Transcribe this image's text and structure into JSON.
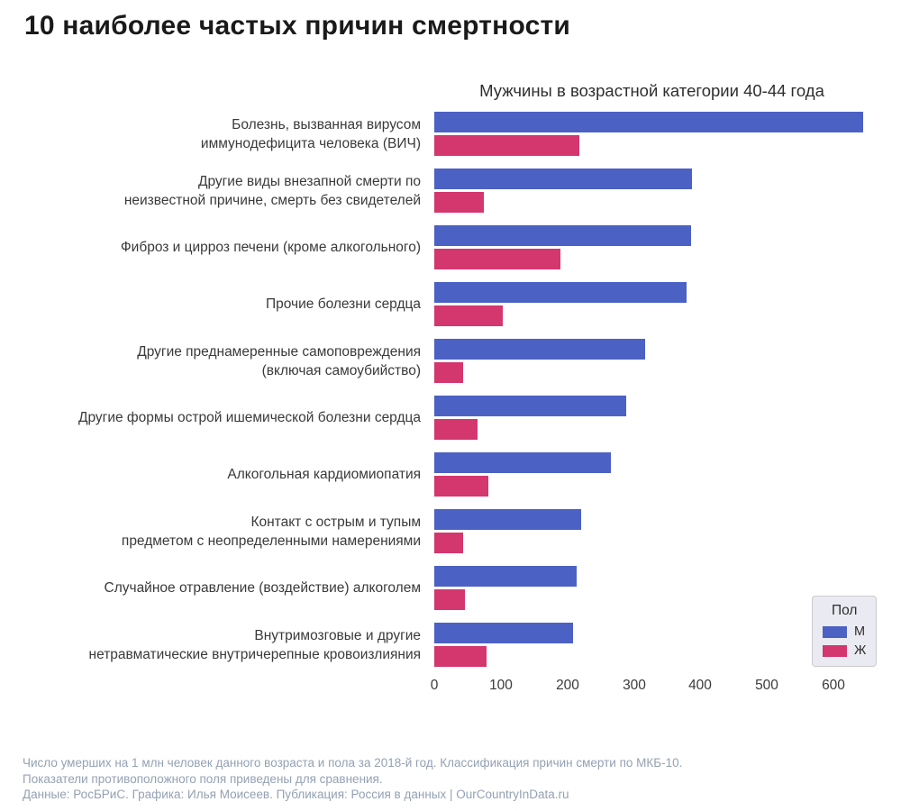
{
  "title": "10 наиболее частых причин смертности",
  "subtitle": "Мужчины в возрастной категории 40-44 года",
  "legend": {
    "title": "Пол",
    "items": [
      {
        "label": "М",
        "color": "#4b61c4"
      },
      {
        "label": "Ж",
        "color": "#d4366e"
      }
    ]
  },
  "footer": {
    "line1": "Число умерших на 1 млн человек данного возраста и пола за 2018-й год. Классификация причин смерти по МКБ-10.",
    "line2": "Показатели противоположного поля приведены для сравнения.",
    "line3": "Данные: РосБРиС. Графика: Илья Моисеев. Публикация: Россия в данных | OurCountryInData.ru"
  },
  "chart_data": {
    "type": "bar",
    "orientation": "horizontal",
    "title": "10 наиболее частых причин смертности",
    "subtitle": "Мужчины в возрастной категории 40-44 года",
    "xlabel": "",
    "ylabel": "",
    "xticks": [
      0,
      100,
      200,
      300,
      400,
      500,
      600
    ],
    "xlim": [
      0,
      660
    ],
    "grid": false,
    "legend_position": "lower right",
    "categories": [
      "Болезнь, вызванная вирусом\nиммунодефицита человека (ВИЧ)",
      "Другие виды внезапной смерти по\nнеизвестной причине, смерть без свидетелей",
      "Фиброз и цирроз печени (кроме алкогольного)",
      "Прочие болезни сердца",
      "Другие преднамеренные самоповреждения\n(включая самоубийство)",
      "Другие формы острой ишемической болезни сердца",
      "Алкогольная кардиомиопатия",
      "Контакт с острым и тупым\nпредметом с неопределенными намерениями",
      "Случайное отравление (воздействие) алкоголем",
      "Внутримозговые и другие\nнетравматические внутричерепные кровоизлияния"
    ],
    "series": [
      {
        "name": "М",
        "color": "#4b61c4",
        "values": [
          645,
          387,
          386,
          379,
          317,
          288,
          265,
          221,
          214,
          209
        ]
      },
      {
        "name": "Ж",
        "color": "#d4366e",
        "values": [
          218,
          74,
          190,
          103,
          43,
          65,
          81,
          43,
          46,
          79
        ]
      }
    ]
  }
}
